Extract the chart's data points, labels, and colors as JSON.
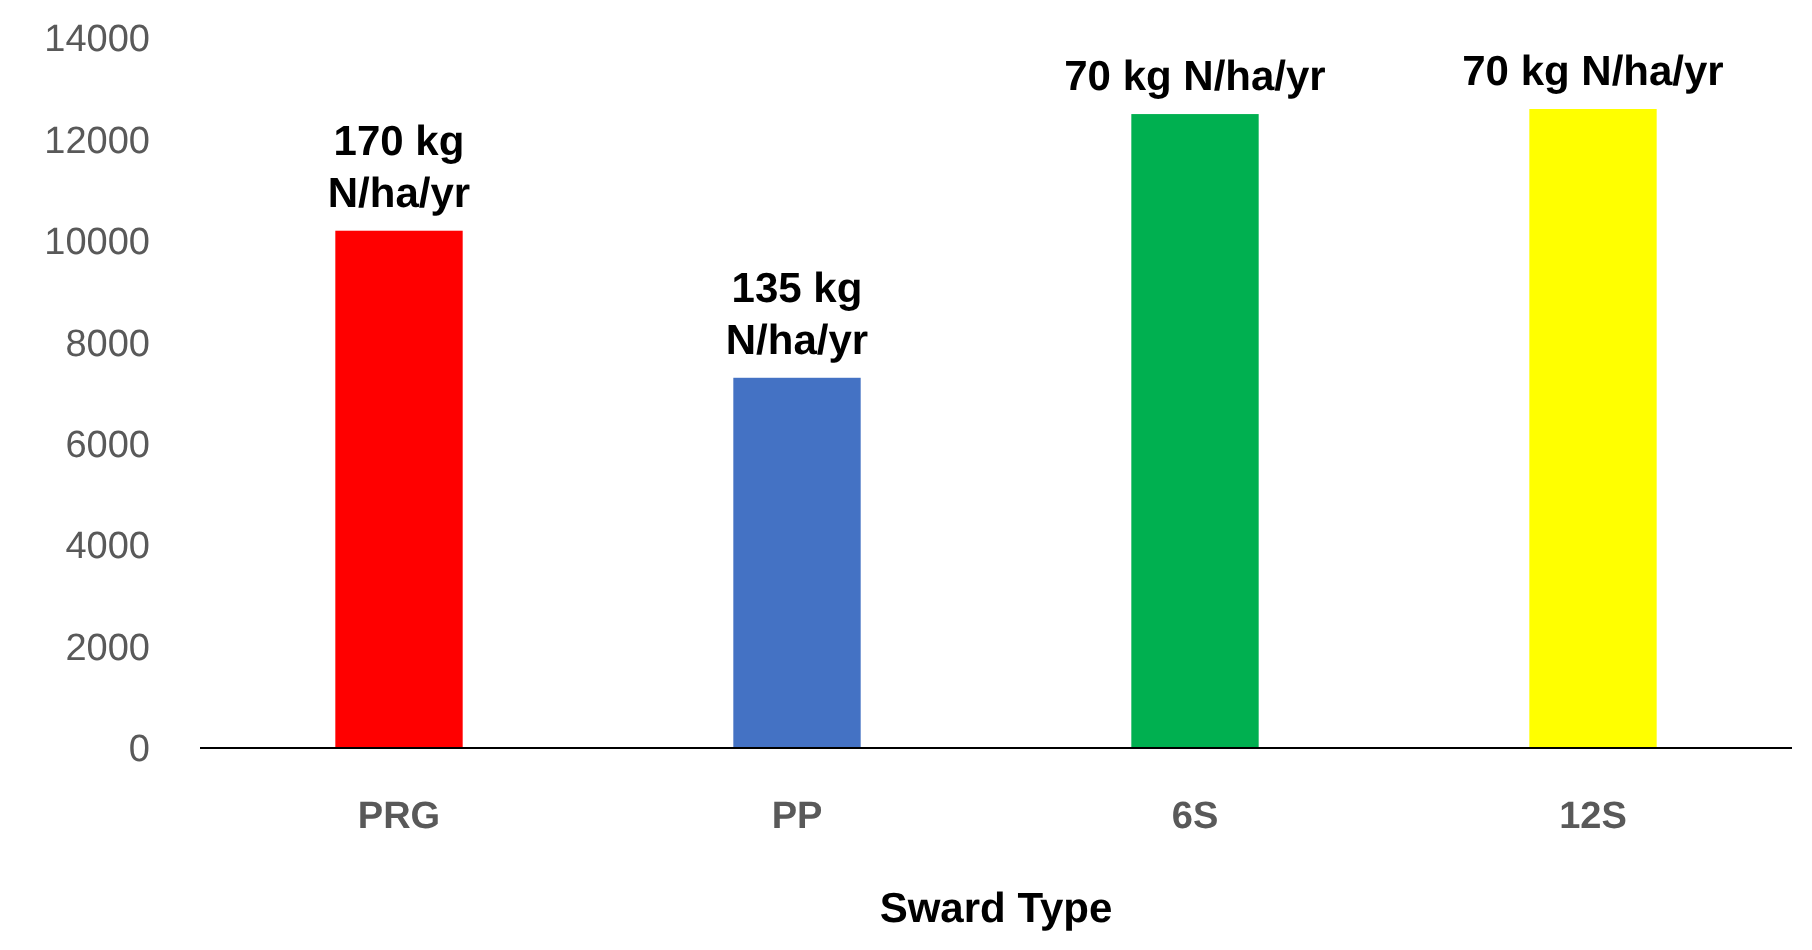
{
  "chart_data": {
    "type": "bar",
    "xlabel": "Sward Type",
    "categories": [
      "PRG",
      "PP",
      "6S",
      "12S"
    ],
    "values": [
      10200,
      7300,
      12500,
      12600
    ],
    "colors": [
      "#ff0000",
      "#4472c4",
      "#00b050",
      "#ffff00"
    ],
    "ylim": [
      0,
      14000
    ],
    "yticks": [
      0,
      2000,
      4000,
      6000,
      8000,
      10000,
      12000,
      14000
    ],
    "grid": false,
    "annotations": [
      {
        "text": "170 kg N/ha/yr",
        "x": "PRG",
        "y": 10200
      },
      {
        "text": "135 kg N/ha/yr",
        "x": "PP",
        "y": 7300
      },
      {
        "text": "70 kg N/ha/yr",
        "x": "6S",
        "y": 12500
      },
      {
        "text": "70 kg N/ha/yr",
        "x": "12S",
        "y": 12600
      }
    ]
  }
}
